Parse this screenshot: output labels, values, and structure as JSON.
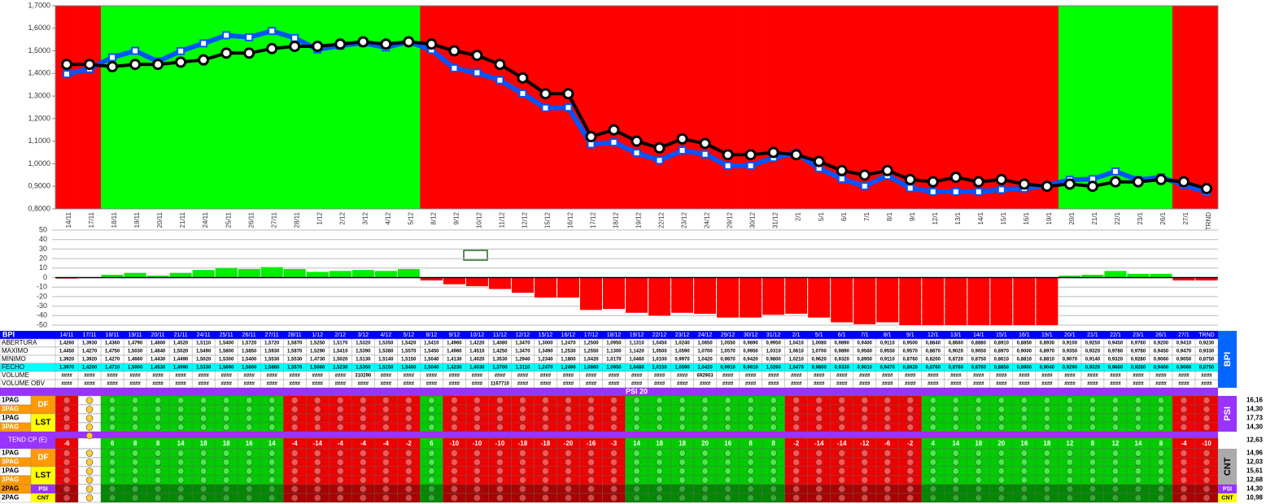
{
  "chart_data": [
    {
      "type": "line",
      "categories": [
        "14/11",
        "17/11",
        "18/11",
        "19/11",
        "20/11",
        "21/11",
        "24/11",
        "25/11",
        "26/11",
        "27/11",
        "28/11",
        "1/12",
        "2/12",
        "3/12",
        "4/12",
        "5/12",
        "8/12",
        "9/12",
        "10/12",
        "11/12",
        "12/12",
        "15/12",
        "16/12",
        "17/12",
        "18/12",
        "19/12",
        "22/12",
        "23/12",
        "24/12",
        "29/12",
        "30/12",
        "31/12",
        "2/1",
        "5/1",
        "6/1",
        "7/1",
        "8/1",
        "9/1",
        "12/1",
        "13/1",
        "14/1",
        "15/1",
        "16/1",
        "19/1",
        "20/1",
        "21/1",
        "22/1",
        "23/1",
        "26/1",
        "27/1",
        "TRND"
      ],
      "band_colors": [
        "#ff0000",
        "#ff0000",
        "#00ff00",
        "#00ff00",
        "#00ff00",
        "#00ff00",
        "#00ff00",
        "#00ff00",
        "#00ff00",
        "#00ff00",
        "#00ff00",
        "#00ff00",
        "#00ff00",
        "#00ff00",
        "#00ff00",
        "#00ff00",
        "#ff0000",
        "#ff0000",
        "#ff0000",
        "#ff0000",
        "#ff0000",
        "#ff0000",
        "#ff0000",
        "#ff0000",
        "#ff0000",
        "#ff0000",
        "#ff0000",
        "#ff0000",
        "#ff0000",
        "#ff0000",
        "#ff0000",
        "#ff0000",
        "#ff0000",
        "#ff0000",
        "#ff0000",
        "#ff0000",
        "#ff0000",
        "#ff0000",
        "#ff0000",
        "#ff0000",
        "#ff0000",
        "#ff0000",
        "#ff0000",
        "#ff0000",
        "#00ff00",
        "#00ff00",
        "#00ff00",
        "#00ff00",
        "#00ff00",
        "#ff0000",
        "#ff0000"
      ],
      "series": [
        {
          "color": "#0055ff",
          "values": [
            1.397,
            1.42,
            1.471,
            1.5,
            1.453,
            1.499,
            1.533,
            1.569,
            1.56,
            1.588,
            1.557,
            1.506,
            1.523,
            1.535,
            1.515,
            1.54,
            1.504,
            1.423,
            1.403,
            1.37,
            1.311,
            1.247,
            1.249,
            1.086,
            1.095,
            1.048,
            1.015,
            1.059,
            1.042,
            0.991,
            0.991,
            1.026,
            1.047,
            0.98,
            0.933,
            0.901,
            0.947,
            0.892,
            0.876,
            0.876,
            0.876,
            0.885,
            0.89,
            0.904,
            0.929,
            0.932,
            0.966,
            0.928,
            0.94,
            0.906,
            0.875
          ]
        },
        {
          "color": "#000000",
          "values": [
            1.44,
            1.44,
            1.43,
            1.44,
            1.44,
            1.45,
            1.46,
            1.49,
            1.49,
            1.51,
            1.52,
            1.52,
            1.53,
            1.54,
            1.53,
            1.54,
            1.53,
            1.5,
            1.48,
            1.44,
            1.38,
            1.31,
            1.31,
            1.12,
            1.15,
            1.1,
            1.07,
            1.11,
            1.09,
            1.04,
            1.04,
            1.05,
            1.04,
            1.01,
            0.97,
            0.95,
            0.97,
            0.93,
            0.92,
            0.94,
            0.92,
            0.93,
            0.91,
            0.9,
            0.91,
            0.9,
            0.92,
            0.92,
            0.93,
            0.92,
            0.89
          ]
        }
      ],
      "ylim": [
        0.8,
        1.7
      ],
      "yticks": [
        {
          "value": 0.8,
          "label": "0,8000"
        },
        {
          "value": 0.9,
          "label": "0,9000"
        },
        {
          "value": 1.0,
          "label": "1,0000"
        },
        {
          "value": 1.1,
          "label": "1,1000"
        },
        {
          "value": 1.2,
          "label": "1,2000"
        },
        {
          "value": 1.3,
          "label": "1,3000"
        },
        {
          "value": 1.4,
          "label": "1,4000"
        },
        {
          "value": 1.5,
          "label": "1,5000"
        },
        {
          "value": 1.6,
          "label": "1,6000"
        },
        {
          "value": 1.7,
          "label": "1,7000"
        }
      ]
    },
    {
      "type": "bar",
      "values": [
        -1,
        0,
        3,
        5,
        2,
        5,
        8,
        10,
        9,
        11,
        9,
        6,
        7,
        8,
        7,
        9,
        -3,
        -7,
        -9,
        -12,
        -16,
        -21,
        -21,
        -34,
        -33,
        -37,
        -40,
        -37,
        -38,
        -42,
        -42,
        -39,
        -38,
        -42,
        -47,
        -49,
        -47,
        -50,
        -50,
        -50,
        -50,
        -50,
        -50,
        -50,
        2,
        3,
        7,
        4,
        4,
        -3,
        -3
      ],
      "positive_color": "#00ee00",
      "negative_color": "#ff0000",
      "ylim": [
        -50,
        50
      ],
      "yticks": [
        50,
        40,
        30,
        20,
        10,
        0,
        -10,
        -20,
        -30,
        -40,
        -50
      ],
      "grid": true
    }
  ],
  "table": {
    "title": "BPI",
    "side_label": "BPI",
    "rows": [
      {
        "label": "ABERTURA",
        "cells": [
          "1,4260",
          "1,3930",
          "1,4360",
          "1,4790",
          "1,4800",
          "1,4520",
          "1,5110",
          "1,5400",
          "1,5720",
          "1,5720",
          "1,5870",
          "1,5250",
          "1,5170",
          "1,5320",
          "1,5350",
          "1,5420",
          "1,5410",
          "1,4960",
          "1,4220",
          "1,4080",
          "1,3470",
          "1,3000",
          "1,2470",
          "1,2500",
          "1,0950",
          "1,1310",
          "1,0450",
          "1,0240",
          "1,0650",
          "1,0550",
          "0,9890",
          "0,9950",
          "1,0410",
          "1,0080",
          "0,9890",
          "0,9400",
          "0,9110",
          "0,9500",
          "0,8840",
          "0,8660",
          "0,8880",
          "0,8910",
          "0,8850",
          "0,8930",
          "0,9100",
          "0,9250",
          "0,9450",
          "0,9760",
          "0,9200",
          "0,9410",
          "0,9230"
        ]
      },
      {
        "label": "MAXIMO",
        "cells": [
          "1,4450",
          "1,4270",
          "1,4750",
          "1,5030",
          "1,4840",
          "1,5020",
          "1,5490",
          "1,5800",
          "1,5850",
          "1,5930",
          "1,5870",
          "1,5290",
          "1,5410",
          "1,5390",
          "1,5380",
          "1,5570",
          "1,5450",
          "1,4960",
          "1,4510",
          "1,4250",
          "1,3470",
          "1,3490",
          "1,2530",
          "1,2550",
          "1,1300",
          "1,1420",
          "1,0500",
          "1,0590",
          "1,0700",
          "1,0570",
          "0,9950",
          "1,0310",
          "1,0610",
          "1,0700",
          "0,9890",
          "0,9560",
          "0,9550",
          "0,9570",
          "0,8870",
          "0,9020",
          "0,9050",
          "0,8970",
          "0,9000",
          "0,8970",
          "0,9350",
          "0,9320",
          "0,9780",
          "0,9780",
          "0,9450",
          "0,9470",
          "0,9330"
        ]
      },
      {
        "label": "MINIMO",
        "cells": [
          "1,3920",
          "1,3920",
          "1,4270",
          "1,4660",
          "1,4430",
          "1,4490",
          "1,5020",
          "1,5300",
          "1,5400",
          "1,5530",
          "1,5530",
          "1,4730",
          "1,5020",
          "1,5130",
          "1,5140",
          "1,5150",
          "1,5040",
          "1,4130",
          "1,4020",
          "1,3530",
          "1,2940",
          "1,2340",
          "1,1800",
          "1,0420",
          "1,0170",
          "1,0460",
          "1,0100",
          "0,9970",
          "1,0420",
          "0,9870",
          "0,9420",
          "0,9800",
          "1,0210",
          "0,9620",
          "0,9320",
          "0,8950",
          "0,9110",
          "0,8760",
          "0,8200",
          "0,8720",
          "0,8750",
          "0,8610",
          "0,8810",
          "0,8810",
          "0,9070",
          "0,9140",
          "0,9320",
          "0,9280",
          "0,9060",
          "0,9050",
          "0,8750"
        ]
      },
      {
        "label": "FECHO",
        "cells": [
          "1,3970",
          "1,4200",
          "1,4710",
          "1,5000",
          "1,4530",
          "1,4990",
          "1,5330",
          "1,5690",
          "1,5600",
          "1,5880",
          "1,5570",
          "1,5060",
          "1,5230",
          "1,5350",
          "1,5150",
          "1,5400",
          "1,5040",
          "1,4230",
          "1,4030",
          "1,3700",
          "1,3110",
          "1,2470",
          "1,2490",
          "1,0860",
          "1,0950",
          "1,0480",
          "1,0150",
          "1,0590",
          "1,0420",
          "0,9910",
          "0,9910",
          "1,0260",
          "1,0470",
          "0,9800",
          "0,9330",
          "0,9010",
          "0,9470",
          "0,8920",
          "0,8760",
          "0,8760",
          "0,8760",
          "0,8850",
          "0,8900",
          "0,9040",
          "0,9290",
          "0,9320",
          "0,9660",
          "0,9280",
          "0,9400",
          "0,9060",
          "0,8750"
        ]
      },
      {
        "label": "VOLUME",
        "cells": [
          "####",
          "####",
          "####",
          "####",
          "####",
          "####",
          "####",
          "####",
          "####",
          "####",
          "####",
          "####",
          "####",
          "310290",
          "####",
          "####",
          "####",
          "####",
          "####",
          "####",
          "####",
          "####",
          "####",
          "####",
          "####",
          "####",
          "####",
          "####",
          "692903",
          "####",
          "####",
          "####",
          "####",
          "####",
          "####",
          "####",
          "####",
          "####",
          "####",
          "####",
          "####",
          "####",
          "####",
          "####",
          "####",
          "####",
          "####",
          "####",
          "####",
          "####",
          "####"
        ]
      },
      {
        "label": "VOLUME OBV",
        "cells": [
          "####",
          "####",
          "####",
          "####",
          "####",
          "####",
          "####",
          "####",
          "####",
          "####",
          "####",
          "####",
          "####",
          "####",
          "####",
          "####",
          "####",
          "####",
          "####",
          "1167710",
          "####",
          "####",
          "####",
          "####",
          "####",
          "####",
          "####",
          "####",
          "####",
          "####",
          "####",
          "####",
          "####",
          "####",
          "####",
          "####",
          "####",
          "####",
          "####",
          "####",
          "####",
          "####",
          "####",
          "####",
          "####",
          "####",
          "####",
          "####",
          "####",
          "####",
          "####"
        ]
      }
    ]
  },
  "signals": {
    "title": "PSI 20",
    "tend_label": "TEND CP (E)",
    "tend_total": "12,63",
    "tend_values": [
      -6,
      null,
      6,
      8,
      8,
      14,
      18,
      18,
      16,
      14,
      -4,
      -14,
      -4,
      -4,
      -4,
      -2,
      6,
      -10,
      -10,
      -10,
      -18,
      -18,
      -20,
      -16,
      -3,
      14,
      18,
      18,
      20,
      16,
      8,
      8,
      -2,
      -14,
      -14,
      -12,
      -6,
      -2,
      4,
      14,
      18,
      20,
      16,
      18,
      12,
      8,
      12,
      14,
      8,
      -4,
      -10
    ],
    "blocks": [
      {
        "side_label": "PSI",
        "groups": [
          "DF",
          "LST"
        ],
        "rows": [
          {
            "label": "1PAG",
            "value": "16,16"
          },
          {
            "label": "3PAG",
            "value": "14,30"
          },
          {
            "label": "1PAG",
            "value": "17,73"
          },
          {
            "label": "3PAG",
            "value": "14,30"
          }
        ]
      },
      {
        "side_label": "CNT",
        "groups": [
          "DF",
          "LST"
        ],
        "rows": [
          {
            "label": "1PAG",
            "value": "14,96"
          },
          {
            "label": "3PAG",
            "value": "12,03"
          },
          {
            "label": "1PAG",
            "value": "15,61"
          },
          {
            "label": "3PAG",
            "value": "12,68"
          }
        ]
      }
    ],
    "summary": [
      {
        "label": "2PAG",
        "tag": "PSI",
        "value": "14,30"
      },
      {
        "label": "2PAG",
        "tag": "CNT",
        "value": "10,98"
      }
    ]
  }
}
